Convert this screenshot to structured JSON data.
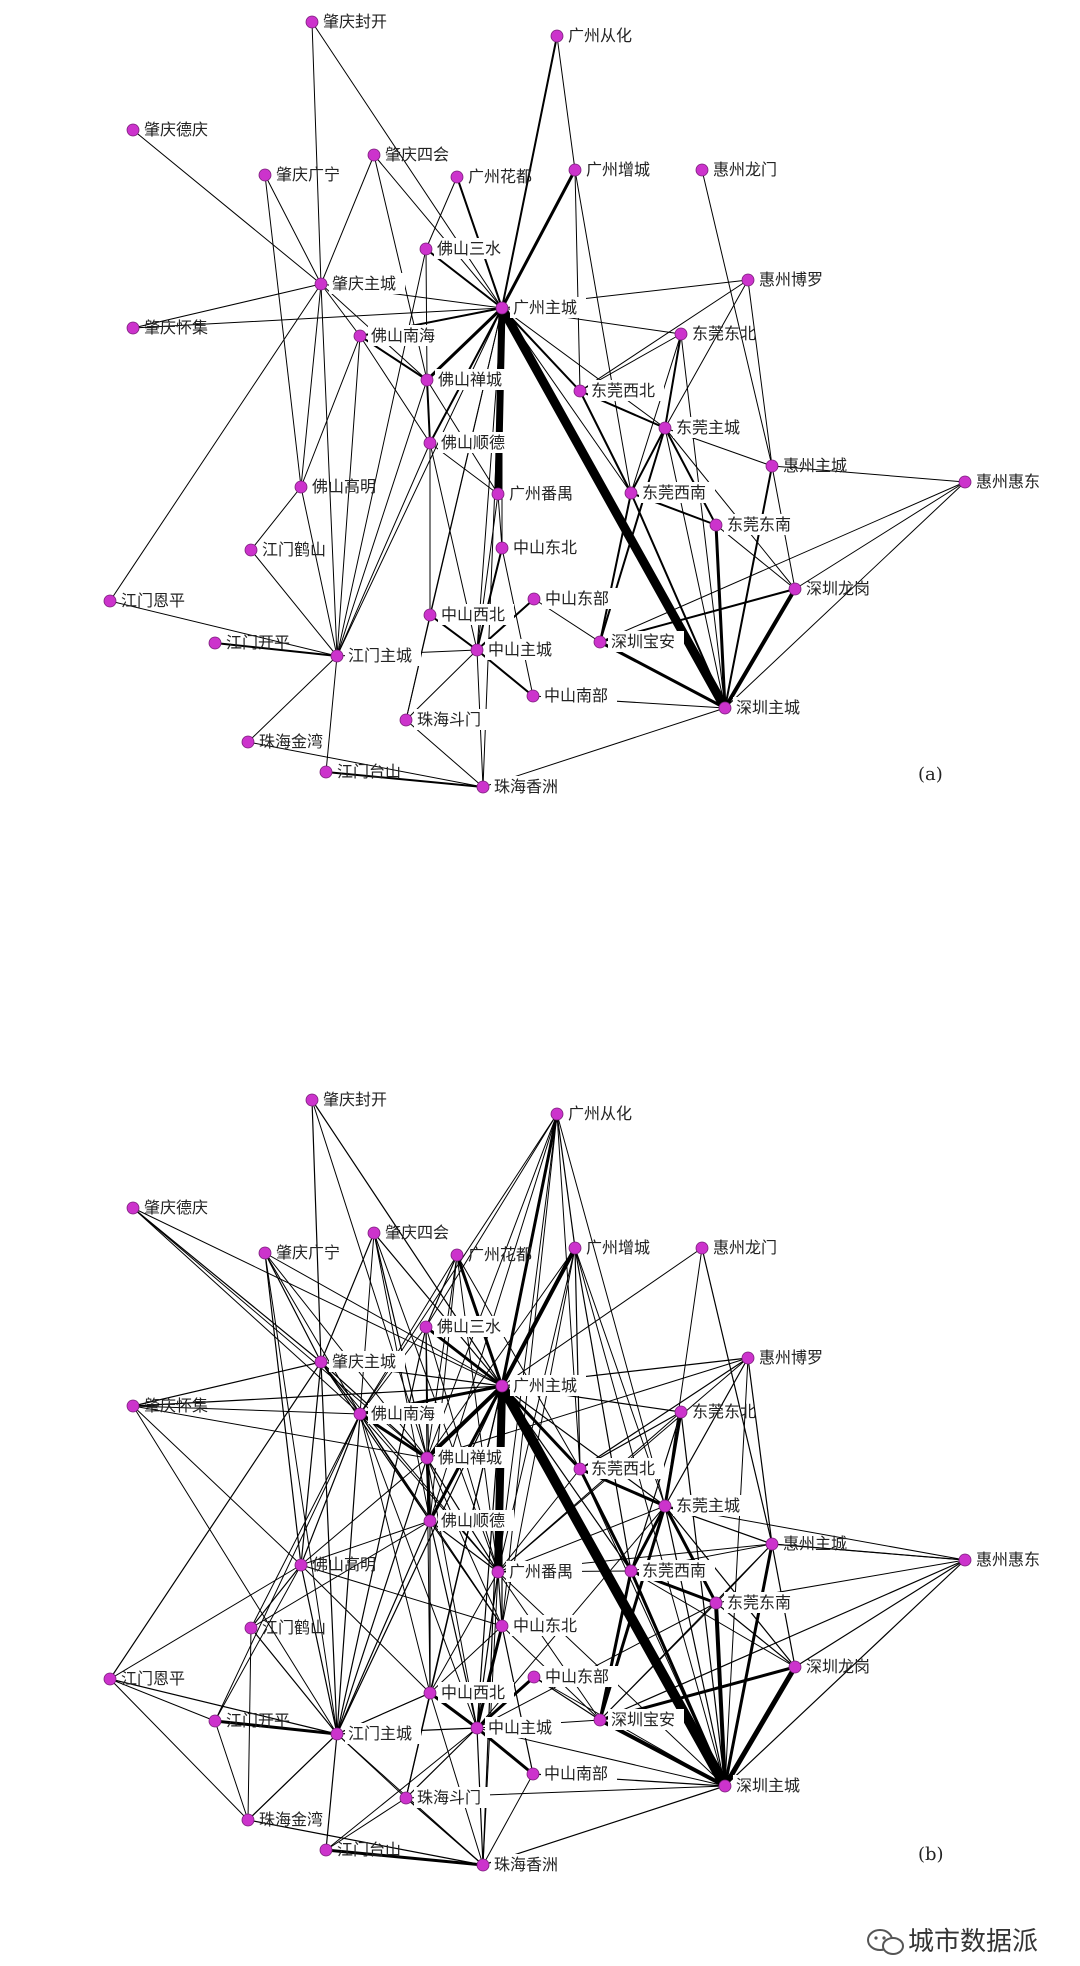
{
  "colors": {
    "node": "#cc33cc",
    "edge": "#000000",
    "label_bg": "#ffffff"
  },
  "panels": [
    {
      "label": "(a)"
    },
    {
      "label": "(b)"
    }
  ],
  "nodes": [
    "肇庆封开",
    "广州从化",
    "肇庆德庆",
    "肇庆广宁",
    "肇庆四会",
    "广州花都",
    "广州增城",
    "惠州龙门",
    "佛山三水",
    "肇庆主城",
    "惠州博罗",
    "广州主城",
    "肇庆怀集",
    "佛山南海",
    "东莞东北",
    "佛山禅城",
    "东莞西北",
    "东莞主城",
    "佛山顺德",
    "惠州主城",
    "惠州惠东",
    "佛山高明",
    "广州番禺",
    "东莞西南",
    "东莞东南",
    "江门鹤山",
    "中山东北",
    "深圳龙岗",
    "江门恩平",
    "中山东部",
    "中山西北",
    "深圳宝安",
    "江门开平",
    "江门主城",
    "中山主城",
    "中山南部",
    "深圳主城",
    "珠海金湾",
    "珠海斗门",
    "江门台山",
    "珠海香洲"
  ],
  "watermark": {
    "icon": "wechat-icon",
    "text": "城市数据派"
  }
}
